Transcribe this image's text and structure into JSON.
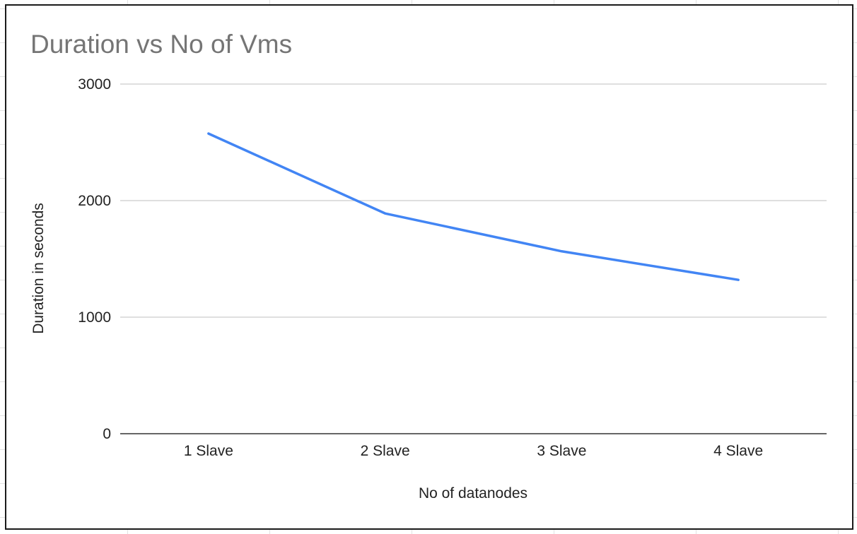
{
  "chart_data": {
    "type": "line",
    "title": "Duration vs No of Vms",
    "xlabel": "No of datanodes",
    "ylabel": "Duration in seconds",
    "categories": [
      "1 Slave",
      "2 Slave",
      "3 Slave",
      "4 Slave"
    ],
    "series": [
      {
        "values": [
          2575,
          1890,
          1565,
          1320
        ],
        "color": "#4285f4"
      }
    ],
    "ylim": [
      0,
      3000
    ],
    "yticks": [
      "0",
      "1000",
      "2000",
      "3000"
    ],
    "grid": true,
    "legend": "none"
  },
  "colors": {
    "line": "#4285f4",
    "grid": "#cccccc",
    "axis": "#333333",
    "title": "#757575"
  }
}
